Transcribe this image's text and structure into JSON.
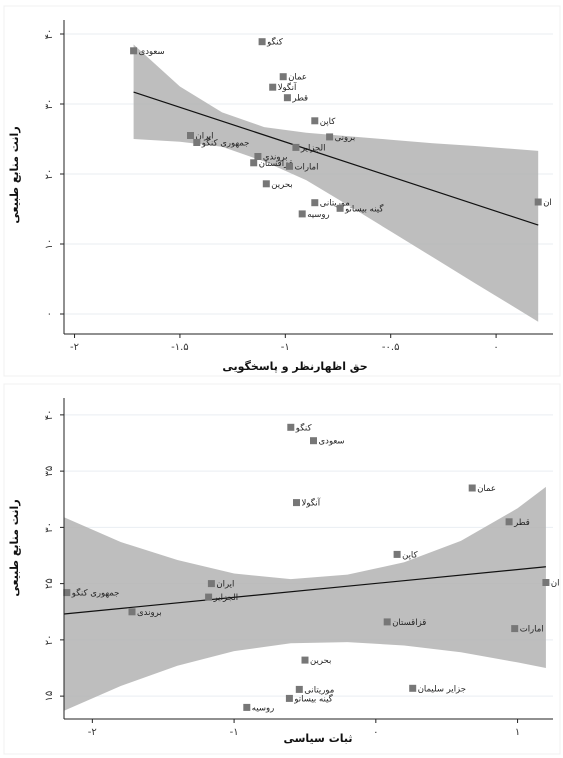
{
  "colors": {
    "band": "#b3b3b3",
    "fit": "#111111",
    "point": "#777777",
    "grid": "#e9eef2"
  },
  "chart_data": [
    {
      "type": "scatter",
      "xlabel": "حق اظهارنظر و پاسخگویی",
      "ylabel": "رانت منابع طبیعی",
      "xlim": [
        -2.05,
        0.27
      ],
      "ylim": [
        -2,
        42
      ],
      "xticks": [
        {
          "value": -2,
          "label": "-۲"
        },
        {
          "value": -1.5,
          "label": "-۱.۵"
        },
        {
          "value": -1,
          "label": "-۱"
        },
        {
          "value": -0.5,
          "label": "-۰.۵"
        },
        {
          "value": 0,
          "label": "۰"
        }
      ],
      "yticks": [
        {
          "value": 0,
          "label": "۰"
        },
        {
          "value": 10,
          "label": "۱۰"
        },
        {
          "value": 20,
          "label": "۲۰"
        },
        {
          "value": 30,
          "label": "۳۰"
        },
        {
          "value": 40,
          "label": "۴۰"
        }
      ],
      "points": [
        {
          "label": "کنگو",
          "x": -1.11,
          "y": 38.9
        },
        {
          "label": "سعودی",
          "x": -1.72,
          "y": 37.6
        },
        {
          "label": "عمان",
          "x": -1.01,
          "y": 33.9
        },
        {
          "label": "آنگولا",
          "x": -1.06,
          "y": 32.4
        },
        {
          "label": "قطر",
          "x": -0.99,
          "y": 30.9
        },
        {
          "label": "کاپن",
          "x": -0.86,
          "y": 27.6
        },
        {
          "label": "برونی",
          "x": -0.79,
          "y": 25.3
        },
        {
          "label": "ایران",
          "x": -1.45,
          "y": 25.5
        },
        {
          "label": "جمهوری کنگو",
          "x": -1.42,
          "y": 24.5
        },
        {
          "label": "الجزایر",
          "x": -0.95,
          "y": 23.8
        },
        {
          "label": "بروندی",
          "x": -1.13,
          "y": 22.5
        },
        {
          "label": "قزاقستان",
          "x": -1.15,
          "y": 21.6
        },
        {
          "label": "امارات",
          "x": -0.98,
          "y": 21.1
        },
        {
          "label": "بحرین",
          "x": -1.09,
          "y": 18.6
        },
        {
          "label": "موریتانی",
          "x": -0.86,
          "y": 15.9
        },
        {
          "label": "گینه بیساتو",
          "x": -0.74,
          "y": 15.1
        },
        {
          "label": "روسیه",
          "x": -0.92,
          "y": 14.3
        },
        {
          "label": "ان",
          "x": 0.2,
          "y": 16.0
        }
      ],
      "fit_line": {
        "x": [
          -1.72,
          0.2
        ],
        "y": [
          31.7,
          12.7
        ]
      },
      "ci_band": {
        "x": [
          -1.72,
          -1.5,
          -1.3,
          -1.1,
          -0.9,
          -0.7,
          -0.5,
          -0.3,
          -0.1,
          0.2
        ],
        "upper": [
          38.5,
          32.5,
          28.8,
          26.7,
          25.9,
          25.4,
          24.9,
          24.4,
          24.0,
          23.3
        ],
        "lower": [
          25.0,
          24.6,
          23.9,
          21.8,
          19.1,
          15.5,
          11.8,
          8.1,
          4.4,
          -1.1
        ]
      }
    },
    {
      "type": "scatter",
      "xlabel": "ثبات سیاسی",
      "ylabel": "رانت منابع طبیعی",
      "xlim": [
        -2.2,
        1.25
      ],
      "ylim": [
        13.5,
        41.5
      ],
      "xticks": [
        {
          "value": -2,
          "label": "-۲"
        },
        {
          "value": -1,
          "label": "-۱"
        },
        {
          "value": 0,
          "label": "۰"
        },
        {
          "value": 1,
          "label": "۱"
        }
      ],
      "yticks": [
        {
          "value": 15,
          "label": "۱۵"
        },
        {
          "value": 20,
          "label": "۲۰"
        },
        {
          "value": 25,
          "label": "۲۵"
        },
        {
          "value": 30,
          "label": "۳۰"
        },
        {
          "value": 35,
          "label": "۳۵"
        },
        {
          "value": 40,
          "label": "۴۰"
        }
      ],
      "points": [
        {
          "label": "کنگو",
          "x": -0.6,
          "y": 38.9
        },
        {
          "label": "سعودی",
          "x": -0.44,
          "y": 37.7
        },
        {
          "label": "عمان",
          "x": 0.68,
          "y": 33.5
        },
        {
          "label": "آنگولا",
          "x": -0.56,
          "y": 32.2
        },
        {
          "label": "قطر",
          "x": 0.94,
          "y": 30.5
        },
        {
          "label": "کاپن",
          "x": 0.15,
          "y": 27.6
        },
        {
          "label": "ایران",
          "x": -1.16,
          "y": 25.0
        },
        {
          "label": "جمهوری کنگو",
          "x": -2.18,
          "y": 24.2
        },
        {
          "label": "الجزایر",
          "x": -1.18,
          "y": 23.8
        },
        {
          "label": "بروندی",
          "x": -1.72,
          "y": 22.5
        },
        {
          "label": "قزاقستان",
          "x": 0.08,
          "y": 21.6
        },
        {
          "label": "امارات",
          "x": 0.98,
          "y": 21.0
        },
        {
          "label": "بحرین",
          "x": -0.5,
          "y": 18.2
        },
        {
          "label": "موریتانی",
          "x": -0.54,
          "y": 15.6
        },
        {
          "label": "گینه بیساتو",
          "x": -0.61,
          "y": 14.8
        },
        {
          "label": "جزایر سلیمان",
          "x": 0.26,
          "y": 15.7
        },
        {
          "label": "روسیه",
          "x": -0.91,
          "y": 14.0
        },
        {
          "label": "ان",
          "x": 1.2,
          "y": 25.1
        }
      ],
      "fit_line": {
        "x": [
          -2.2,
          1.2
        ],
        "y": [
          22.3,
          26.5
        ]
      },
      "ci_band": {
        "x": [
          -2.2,
          -1.8,
          -1.4,
          -1.0,
          -0.6,
          -0.2,
          0.2,
          0.6,
          1.0,
          1.2
        ],
        "upper": [
          30.9,
          28.7,
          27.1,
          25.9,
          25.4,
          25.8,
          26.9,
          28.8,
          31.7,
          33.6
        ],
        "lower": [
          13.7,
          15.9,
          17.7,
          19.0,
          19.7,
          19.8,
          19.5,
          18.9,
          18.0,
          17.5
        ]
      }
    }
  ]
}
